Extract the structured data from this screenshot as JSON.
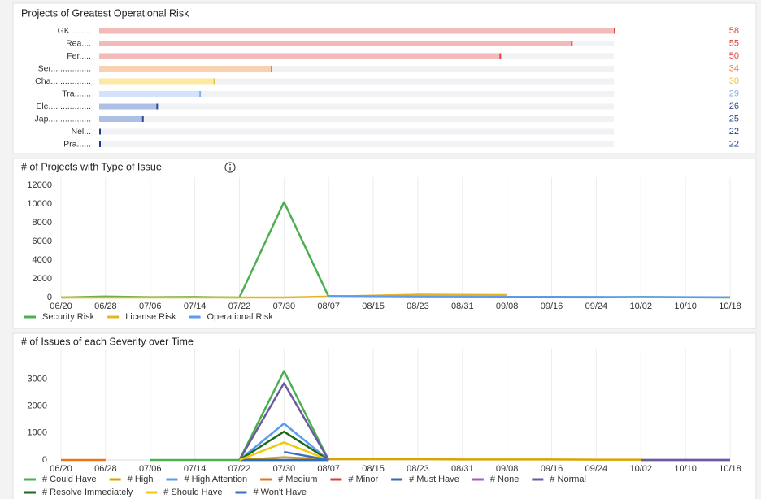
{
  "chart_data": [
    {
      "type": "hbar",
      "title": "Projects of Greatest Operational Risk",
      "categories": [
        "GK ........",
        "Rea....",
        "Fer.....",
        "Ser.................",
        "Cha.................",
        "Tra.......",
        "Ele..................",
        "Jap..................",
        "Nel...",
        "Pra......"
      ],
      "values": [
        58,
        55,
        50,
        34,
        30,
        29,
        26,
        25,
        22,
        22
      ],
      "xlim": [
        22,
        58
      ],
      "colors": [
        "#f4b9b9",
        "#f4b9b9",
        "#f4b9b9",
        "#f9d0b0",
        "#fde9a4",
        "#d3e3fb",
        "#abc0e3",
        "#abc0e3",
        "#abc0e3",
        "#abc0e3"
      ],
      "label_colors": [
        "#d9453f",
        "#d9453f",
        "#d9453f",
        "#ef7d32",
        "#e8c33a",
        "#7fb0f0",
        "#2c4a8a",
        "#2c4a8a",
        "#1f3f8a",
        "#1f3f8a"
      ]
    },
    {
      "type": "line",
      "title": "# of Projects with Type of Issue",
      "categories": [
        "06/20",
        "06/28",
        "07/06",
        "07/14",
        "07/22",
        "07/30",
        "08/07",
        "08/15",
        "08/23",
        "08/31",
        "09/08",
        "09/16",
        "09/24",
        "10/02",
        "10/10",
        "10/18"
      ],
      "series": [
        {
          "name": "Security Risk",
          "color": "#4caf50",
          "values": [
            0,
            100,
            30,
            50,
            0,
            10200,
            100,
            60,
            40,
            30,
            20,
            20,
            10,
            50,
            20,
            0
          ]
        },
        {
          "name": "License Risk",
          "color": "#e6b422",
          "values": [
            0,
            0,
            0,
            0,
            0,
            0,
            100,
            200,
            300,
            280,
            260,
            null,
            null,
            null,
            null,
            null
          ]
        },
        {
          "name": "Operational Risk",
          "color": "#5b9bf0",
          "values": [
            null,
            null,
            null,
            null,
            null,
            null,
            150,
            120,
            100,
            80,
            70,
            60,
            50,
            40,
            30,
            20
          ]
        }
      ],
      "ylim": [
        0,
        12000
      ],
      "yticks": [
        0,
        2000,
        4000,
        6000,
        8000,
        10000,
        12000
      ],
      "grid": "x"
    },
    {
      "type": "line",
      "title": "# of Issues of each Severity over Time",
      "categories": [
        "06/20",
        "06/28",
        "07/06",
        "07/14",
        "07/22",
        "07/30",
        "08/07",
        "08/15",
        "08/23",
        "08/31",
        "09/08",
        "09/16",
        "09/24",
        "10/02",
        "10/10",
        "10/18"
      ],
      "series": [
        {
          "name": "# Could Have",
          "color": "#4caf50",
          "values": [
            null,
            null,
            0,
            0,
            0,
            3300,
            0,
            null,
            null,
            null,
            null,
            null,
            null,
            null,
            null,
            null
          ]
        },
        {
          "name": "# High",
          "color": "#d9a400",
          "values": [
            null,
            null,
            null,
            null,
            0,
            100,
            30,
            30,
            30,
            20,
            20,
            20,
            10,
            10,
            null,
            null
          ]
        },
        {
          "name": "# High Attention",
          "color": "#5b9bf0",
          "values": [
            null,
            null,
            null,
            null,
            0,
            1350,
            0,
            null,
            null,
            null,
            null,
            null,
            null,
            null,
            null,
            null
          ]
        },
        {
          "name": "# Medium",
          "color": "#e8731a",
          "values": [
            0,
            0,
            null,
            null,
            null,
            null,
            null,
            null,
            null,
            null,
            null,
            null,
            null,
            null,
            null,
            null
          ]
        },
        {
          "name": "# Minor",
          "color": "#d43f3f",
          "values": [
            null,
            null,
            null,
            null,
            0,
            0,
            0,
            null,
            null,
            null,
            null,
            null,
            null,
            null,
            null,
            null
          ]
        },
        {
          "name": "# Must Have",
          "color": "#2a6fb5",
          "values": [
            null,
            null,
            null,
            null,
            0,
            0,
            0,
            null,
            null,
            null,
            null,
            null,
            null,
            null,
            null,
            null
          ]
        },
        {
          "name": "# None",
          "color": "#a05cc8",
          "values": [
            null,
            null,
            null,
            null,
            null,
            null,
            null,
            null,
            null,
            null,
            null,
            null,
            null,
            0,
            0,
            0
          ]
        },
        {
          "name": "# Normal",
          "color": "#6a5a9e",
          "values": [
            null,
            null,
            null,
            null,
            0,
            2850,
            0,
            null,
            null,
            null,
            null,
            null,
            null,
            0,
            0,
            0
          ]
        },
        {
          "name": "# Resolve Immediately",
          "color": "#1b6b1b",
          "values": [
            null,
            null,
            null,
            null,
            0,
            1050,
            0,
            null,
            null,
            null,
            null,
            null,
            null,
            null,
            null,
            null
          ]
        },
        {
          "name": "# Should Have",
          "color": "#f2c80f",
          "values": [
            null,
            null,
            null,
            null,
            0,
            650,
            0,
            null,
            null,
            null,
            null,
            null,
            null,
            null,
            null,
            null
          ]
        },
        {
          "name": "# Won't Have",
          "color": "#3a6fc4",
          "values": [
            null,
            null,
            null,
            null,
            null,
            300,
            0,
            null,
            null,
            null,
            null,
            null,
            null,
            null,
            null,
            null
          ]
        }
      ],
      "ylim": [
        0,
        3800
      ],
      "yticks": [
        0,
        1000,
        2000,
        3000
      ],
      "grid": "x"
    }
  ]
}
